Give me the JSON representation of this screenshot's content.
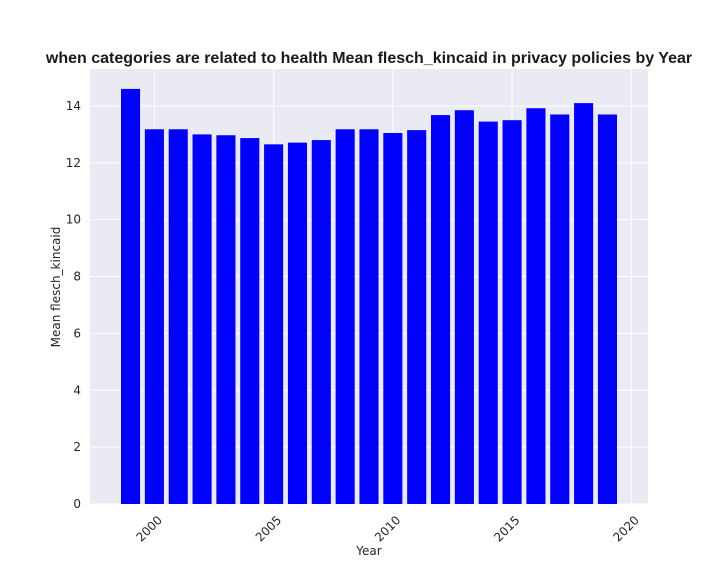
{
  "chart_data": {
    "type": "bar",
    "title": "when categories are related to health Mean flesch_kincaid in privacy policies by Year",
    "xlabel": "Year",
    "ylabel": "Mean flesch_kincaid",
    "x": [
      1999,
      2000,
      2001,
      2002,
      2003,
      2004,
      2005,
      2006,
      2007,
      2008,
      2009,
      2010,
      2011,
      2012,
      2013,
      2014,
      2015,
      2016,
      2017,
      2018,
      2019
    ],
    "values": [
      14.6,
      13.18,
      13.18,
      13.0,
      12.97,
      12.87,
      12.65,
      12.71,
      12.8,
      13.18,
      13.18,
      13.05,
      13.15,
      13.68,
      13.85,
      13.45,
      13.5,
      13.92,
      13.7,
      14.1,
      13.7
    ],
    "xlim": [
      1997.3,
      2020.7
    ],
    "ylim": [
      0,
      15.3
    ],
    "xticks": [
      2000,
      2005,
      2010,
      2015,
      2020
    ],
    "yticks": [
      0,
      2,
      4,
      6,
      8,
      10,
      12,
      14
    ],
    "bar_color": "#0000ff",
    "background_color": "#eaeaf2",
    "grid_color": "#ffffff",
    "grid": true
  }
}
